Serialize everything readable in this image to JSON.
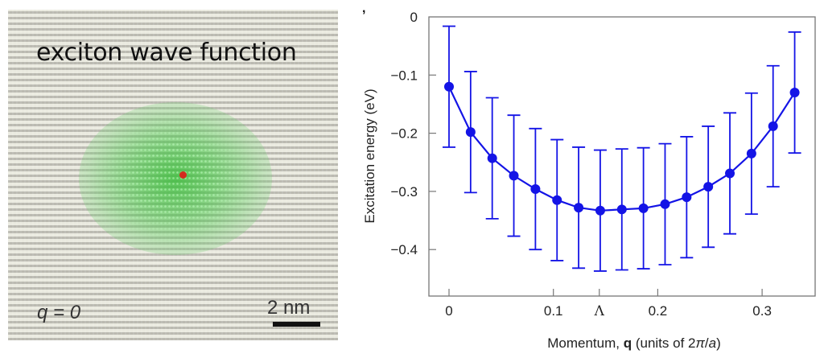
{
  "left_panel": {
    "title": "exciton wave function",
    "q_label": "q = 0",
    "scale_label": "2 nm",
    "colors": {
      "wave": "#3cbe3c",
      "hole": "#d42a1e"
    }
  },
  "corner_mark": ",",
  "chart_data": {
    "type": "line",
    "title": "",
    "xlabel_parts": [
      "Momentum, ",
      "q",
      " (units of 2",
      "π",
      "/",
      "a",
      ")"
    ],
    "ylabel": "Excitation energy (eV)",
    "xlim": [
      -0.02,
      0.35
    ],
    "ylim": [
      -0.48,
      0.0
    ],
    "xticks": [
      {
        "value": 0,
        "label": "0"
      },
      {
        "value": 0.1,
        "label": "0.1"
      },
      {
        "value": 0.144,
        "label": "Λ"
      },
      {
        "value": 0.2,
        "label": "0.2"
      },
      {
        "value": 0.3,
        "label": "0.3"
      }
    ],
    "yticks": [
      {
        "value": 0,
        "label": "0"
      },
      {
        "value": -0.1,
        "label": "−0.1"
      },
      {
        "value": -0.2,
        "label": "−0.2"
      },
      {
        "value": -0.3,
        "label": "−0.3"
      },
      {
        "value": -0.4,
        "label": "−0.4"
      }
    ],
    "grid": false,
    "series": [
      {
        "name": "Excitation energy",
        "color": "#1414e6",
        "x": [
          0,
          0.0207,
          0.0414,
          0.0621,
          0.0828,
          0.1035,
          0.1242,
          0.1449,
          0.1656,
          0.1863,
          0.207,
          0.2277,
          0.2484,
          0.2691,
          0.2898,
          0.3105,
          0.3312
        ],
        "y": [
          -0.12,
          -0.198,
          -0.243,
          -0.273,
          -0.296,
          -0.315,
          -0.328,
          -0.333,
          -0.331,
          -0.329,
          -0.322,
          -0.31,
          -0.292,
          -0.269,
          -0.235,
          -0.188,
          -0.13
        ],
        "err": [
          0.104,
          0.104,
          0.104,
          0.104,
          0.104,
          0.104,
          0.104,
          0.104,
          0.104,
          0.104,
          0.104,
          0.104,
          0.104,
          0.104,
          0.104,
          0.104,
          0.104
        ]
      }
    ]
  }
}
